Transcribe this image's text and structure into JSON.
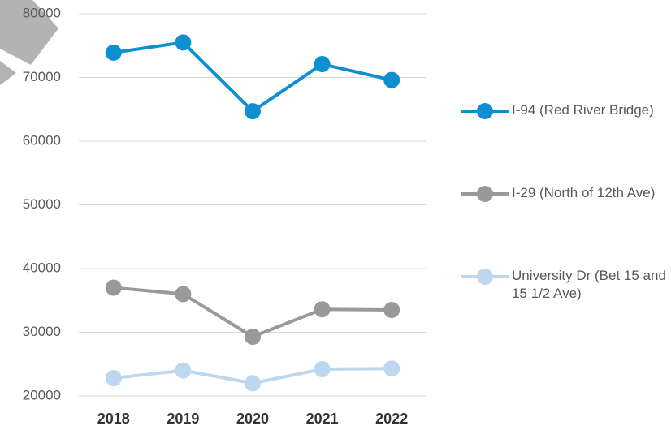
{
  "chart_data": {
    "type": "line",
    "categories": [
      "2018",
      "2019",
      "2020",
      "2021",
      "2022"
    ],
    "series": [
      {
        "name": "I-94 (Red River Bridge)",
        "color": "#0e8fd0",
        "values": [
          73900,
          75500,
          64700,
          72100,
          69600
        ]
      },
      {
        "name": "I-29 (North of 12th Ave)",
        "color": "#999999",
        "values": [
          37000,
          36000,
          29300,
          33600,
          33500
        ]
      },
      {
        "name": "University Dr (Bet 15 and 15 1/2 Ave)",
        "color": "#bdd7ee",
        "values": [
          22800,
          24000,
          22000,
          24200,
          24300
        ]
      }
    ],
    "ylim": [
      20000,
      80000
    ],
    "yticks": [
      20000,
      30000,
      40000,
      50000,
      60000,
      70000,
      80000
    ],
    "grid": true,
    "legend": "right"
  }
}
